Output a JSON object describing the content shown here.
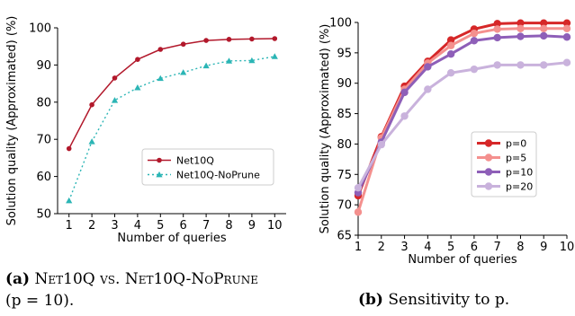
{
  "chart_data": [
    {
      "type": "line",
      "xlabel": "Number of queries",
      "ylabel": "Solution quality (Approximated) (%)",
      "x": [
        1,
        2,
        3,
        4,
        5,
        6,
        7,
        8,
        9,
        10
      ],
      "xlim": [
        0.5,
        10.5
      ],
      "ylim": [
        50,
        100
      ],
      "yticks": [
        50,
        60,
        70,
        80,
        90,
        100
      ],
      "grid": false,
      "legend": "center-right",
      "series": [
        {
          "name": "Net10Q",
          "color": "#b2182b",
          "style": "solid",
          "marker": "circle",
          "values": [
            67.5,
            79.3,
            86.5,
            91.5,
            94.2,
            95.6,
            96.6,
            96.9,
            97.0,
            97.1
          ]
        },
        {
          "name": "Net10Q-NoPrune",
          "color": "#2bb5b5",
          "style": "dotted",
          "marker": "triangle",
          "values": [
            53.5,
            69.4,
            80.5,
            83.9,
            86.4,
            88.0,
            89.8,
            91.1,
            91.2,
            92.3
          ]
        }
      ]
    },
    {
      "type": "line",
      "xlabel": "Number of queries",
      "ylabel": "Solution quality (Approximated) (%)",
      "x": [
        1,
        2,
        3,
        4,
        5,
        6,
        7,
        8,
        9,
        10
      ],
      "xlim": [
        1,
        10
      ],
      "ylim": [
        65,
        100
      ],
      "yticks": [
        65,
        70,
        75,
        80,
        85,
        90,
        95,
        100
      ],
      "grid": false,
      "legend": "center-right",
      "series": [
        {
          "name": "p=0",
          "color": "#d62728",
          "values": [
            71.5,
            81.2,
            89.5,
            93.6,
            97.1,
            98.9,
            99.8,
            99.9,
            99.9,
            99.9
          ]
        },
        {
          "name": "p=5",
          "color": "#f4908e",
          "values": [
            68.8,
            81.0,
            89.0,
            93.3,
            96.2,
            98.2,
            98.9,
            99.0,
            99.0,
            99.0
          ]
        },
        {
          "name": "p=10",
          "color": "#8e5fb8",
          "values": [
            72.0,
            80.3,
            88.5,
            92.7,
            94.8,
            97.0,
            97.5,
            97.7,
            97.8,
            97.6
          ]
        },
        {
          "name": "p=20",
          "color": "#c9b2dc",
          "values": [
            72.8,
            79.9,
            84.6,
            89.0,
            91.7,
            92.3,
            93.0,
            93.0,
            93.0,
            93.4
          ]
        }
      ]
    }
  ],
  "captions": {
    "a_label": "(a)",
    "a_text": "Net10Q vs. Net10Q-NoPrune",
    "a_text2": "(p = 10).",
    "b_label": "(b)",
    "b_text": "Sensitivity to p."
  }
}
